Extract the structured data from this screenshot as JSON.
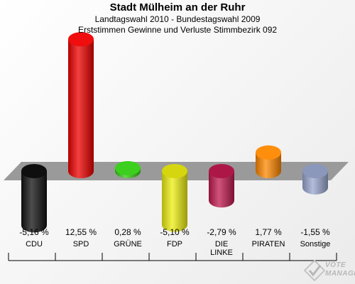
{
  "header": {
    "title": "Stadt Mülheim an der Ruhr",
    "subtitle1": "Landtagswahl 2010 - Bundestagswahl 2009",
    "subtitle2": "Erststimmen Gewinne und Verluste Stimmbezirk 092"
  },
  "watermark": {
    "line1": "VOTE",
    "line2": "MANAGER"
  },
  "chart_data": {
    "type": "bar",
    "title": "Stadt Mülheim an der Ruhr",
    "subtitle": "Landtagswahl 2010 - Bundestagswahl 2009 / Erststimmen Gewinne und Verluste Stimmbezirk 092",
    "categories": [
      "CDU",
      "SPD",
      "GRÜNE",
      "FDP",
      "DIE LINKE",
      "PIRATEN",
      "Sonstige"
    ],
    "category_lines": [
      [
        "CDU"
      ],
      [
        "SPD"
      ],
      [
        "GRÜNE"
      ],
      [
        "FDP"
      ],
      [
        "DIE",
        "LINKE"
      ],
      [
        "PIRATEN"
      ],
      [
        "Sonstige"
      ]
    ],
    "values": [
      -5.16,
      12.55,
      0.28,
      -5.1,
      -2.79,
      1.77,
      -1.55
    ],
    "labels": [
      "-5,16 %",
      "12,55 %",
      "0,28 %",
      "-5,10 %",
      "-2,79 %",
      "1,77 %",
      "-1,55 %"
    ],
    "colors": [
      "#111111",
      "#ee0000",
      "#33cc11",
      "#eeee11",
      "#c01a50",
      "#ff8800",
      "#9aa8d0"
    ],
    "ylim": [
      -6,
      13
    ],
    "xlabel": "",
    "ylabel": "",
    "grid": false
  }
}
